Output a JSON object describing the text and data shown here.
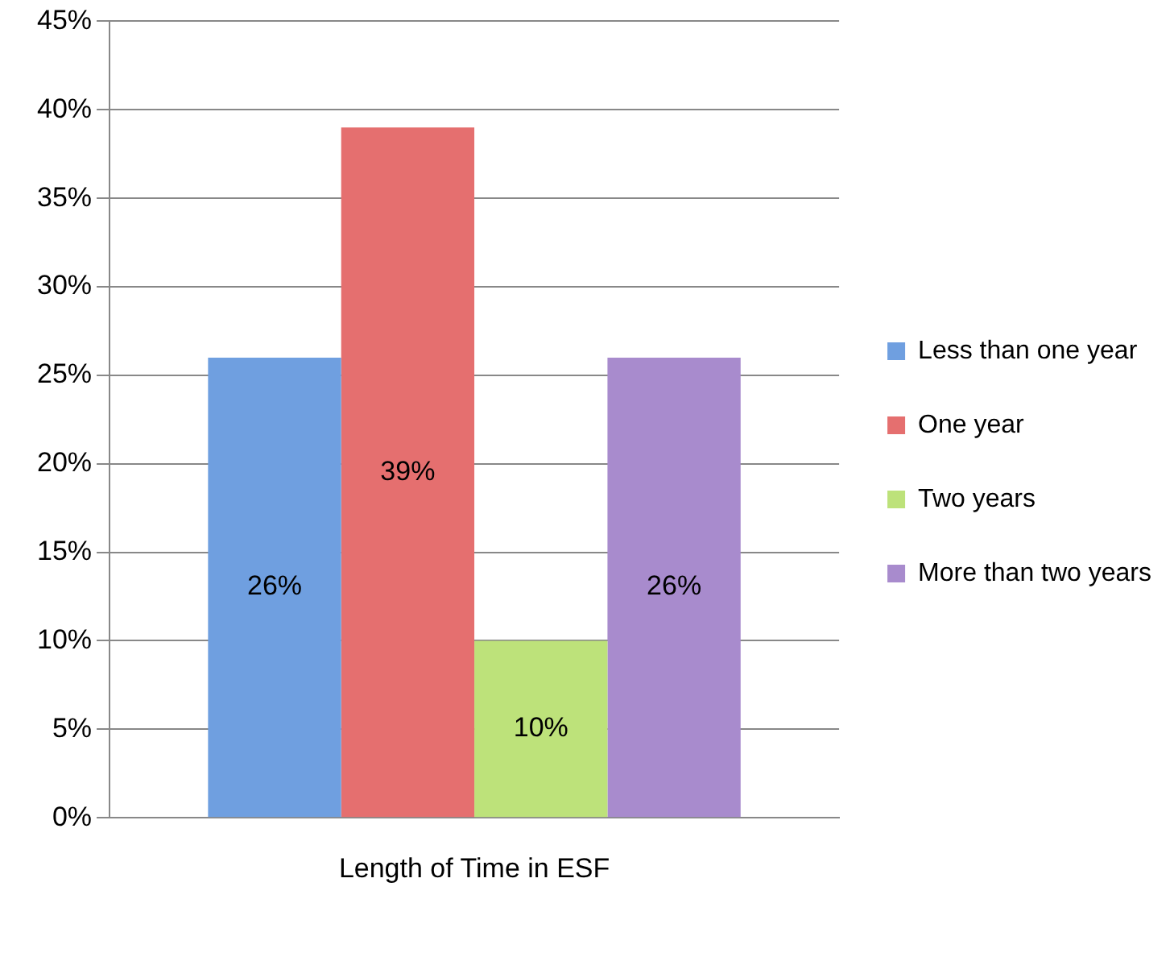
{
  "chart_data": {
    "type": "bar",
    "categories": [
      "Length of Time in ESF"
    ],
    "series": [
      {
        "name": "Less than one year",
        "color": "#6f9fe0",
        "values": [
          26
        ],
        "value_labels": [
          "26%"
        ]
      },
      {
        "name": "One year",
        "color": "#e56f6f",
        "values": [
          39
        ],
        "value_labels": [
          "39%"
        ]
      },
      {
        "name": "Two years",
        "color": "#bde27a",
        "values": [
          10
        ],
        "value_labels": [
          "10%"
        ]
      },
      {
        "name": "More than two years",
        "color": "#a88bcd",
        "values": [
          26
        ],
        "value_labels": [
          "26%"
        ]
      }
    ],
    "ylim": [
      0,
      45
    ],
    "yticks": [
      {
        "value": 0,
        "label": "0%"
      },
      {
        "value": 5,
        "label": "5%"
      },
      {
        "value": 10,
        "label": "10%"
      },
      {
        "value": 15,
        "label": "15%"
      },
      {
        "value": 20,
        "label": "20%"
      },
      {
        "value": 25,
        "label": "25%"
      },
      {
        "value": 30,
        "label": "30%"
      },
      {
        "value": 35,
        "label": "35%"
      },
      {
        "value": 40,
        "label": "40%"
      },
      {
        "value": 45,
        "label": "45%"
      }
    ],
    "grid": "y",
    "legend": "right"
  }
}
